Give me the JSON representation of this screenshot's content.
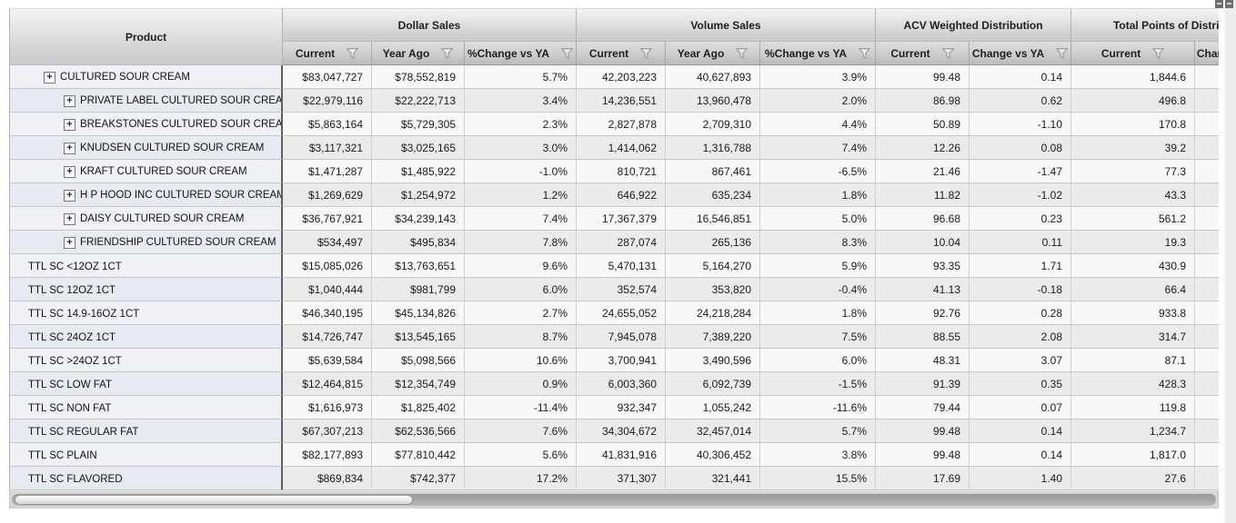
{
  "grid": {
    "product_header": "Product",
    "groups": [
      {
        "label": "Dollar Sales",
        "columns": [
          "Current",
          "Year Ago",
          "%Change vs YA"
        ]
      },
      {
        "label": "Volume Sales",
        "columns": [
          "Current",
          "Year Ago",
          "%Change vs YA"
        ]
      },
      {
        "label": "ACV Weighted Distribution",
        "columns": [
          "Current",
          "Change vs YA"
        ]
      },
      {
        "label": "Total Points of Distribution",
        "columns": [
          "Current",
          "Change vs YA"
        ]
      }
    ],
    "icons": {
      "filter": "funnel-icon",
      "expand": "plus-box-icon",
      "corner": "resize-handle-icon"
    },
    "rows": [
      {
        "product": "CULTURED SOUR CREAM",
        "level": 0,
        "expandable": true,
        "values": [
          "$83,047,727",
          "$78,552,819",
          "5.7%",
          "42,203,223",
          "40,627,893",
          "3.9%",
          "99.48",
          "0.14",
          "1,844.6",
          ""
        ]
      },
      {
        "product": "PRIVATE LABEL CULTURED SOUR CREAM",
        "level": 1,
        "expandable": true,
        "values": [
          "$22,979,116",
          "$22,222,713",
          "3.4%",
          "14,236,551",
          "13,960,478",
          "2.0%",
          "86.98",
          "0.62",
          "496.8",
          ""
        ]
      },
      {
        "product": "BREAKSTONES CULTURED SOUR CREAM",
        "level": 1,
        "expandable": true,
        "values": [
          "$5,863,164",
          "$5,729,305",
          "2.3%",
          "2,827,878",
          "2,709,310",
          "4.4%",
          "50.89",
          "-1.10",
          "170.8",
          ""
        ]
      },
      {
        "product": "KNUDSEN CULTURED SOUR CREAM",
        "level": 1,
        "expandable": true,
        "values": [
          "$3,117,321",
          "$3,025,165",
          "3.0%",
          "1,414,062",
          "1,316,788",
          "7.4%",
          "12.26",
          "0.08",
          "39.2",
          ""
        ]
      },
      {
        "product": "KRAFT CULTURED SOUR CREAM",
        "level": 1,
        "expandable": true,
        "values": [
          "$1,471,287",
          "$1,485,922",
          "-1.0%",
          "810,721",
          "867,461",
          "-6.5%",
          "21.46",
          "-1.47",
          "77.3",
          ""
        ]
      },
      {
        "product": "H P HOOD INC CULTURED SOUR CREAM",
        "level": 1,
        "expandable": true,
        "values": [
          "$1,269,629",
          "$1,254,972",
          "1.2%",
          "646,922",
          "635,234",
          "1.8%",
          "11.82",
          "-1.02",
          "43.3",
          ""
        ]
      },
      {
        "product": "DAISY CULTURED SOUR CREAM",
        "level": 1,
        "expandable": true,
        "values": [
          "$36,767,921",
          "$34,239,143",
          "7.4%",
          "17,367,379",
          "16,546,851",
          "5.0%",
          "96.68",
          "0.23",
          "561.2",
          ""
        ]
      },
      {
        "product": "FRIENDSHIP CULTURED SOUR CREAM",
        "level": 1,
        "expandable": true,
        "values": [
          "$534,497",
          "$495,834",
          "7.8%",
          "287,074",
          "265,136",
          "8.3%",
          "10.04",
          "0.11",
          "19.3",
          ""
        ]
      },
      {
        "product": "TTL SC <12OZ 1CT",
        "level": 0,
        "expandable": false,
        "values": [
          "$15,085,026",
          "$13,763,651",
          "9.6%",
          "5,470,131",
          "5,164,270",
          "5.9%",
          "93.35",
          "1.71",
          "430.9",
          ""
        ]
      },
      {
        "product": "TTL SC 12OZ 1CT",
        "level": 0,
        "expandable": false,
        "values": [
          "$1,040,444",
          "$981,799",
          "6.0%",
          "352,574",
          "353,820",
          "-0.4%",
          "41.13",
          "-0.18",
          "66.4",
          ""
        ]
      },
      {
        "product": "TTL SC 14.9-16OZ 1CT",
        "level": 0,
        "expandable": false,
        "values": [
          "$46,340,195",
          "$45,134,826",
          "2.7%",
          "24,655,052",
          "24,218,284",
          "1.8%",
          "92.76",
          "0.28",
          "933.8",
          ""
        ]
      },
      {
        "product": "TTL SC 24OZ 1CT",
        "level": 0,
        "expandable": false,
        "values": [
          "$14,726,747",
          "$13,545,165",
          "8.7%",
          "7,945,078",
          "7,389,220",
          "7.5%",
          "88.55",
          "2.08",
          "314.7",
          ""
        ]
      },
      {
        "product": "TTL SC >24OZ 1CT",
        "level": 0,
        "expandable": false,
        "values": [
          "$5,639,584",
          "$5,098,566",
          "10.6%",
          "3,700,941",
          "3,490,596",
          "6.0%",
          "48.31",
          "3.07",
          "87.1",
          ""
        ]
      },
      {
        "product": "TTL SC LOW FAT",
        "level": 0,
        "expandable": false,
        "values": [
          "$12,464,815",
          "$12,354,749",
          "0.9%",
          "6,003,360",
          "6,092,739",
          "-1.5%",
          "91.39",
          "0.35",
          "428.3",
          ""
        ]
      },
      {
        "product": "TTL SC NON FAT",
        "level": 0,
        "expandable": false,
        "values": [
          "$1,616,973",
          "$1,825,402",
          "-11.4%",
          "932,347",
          "1,055,242",
          "-11.6%",
          "79.44",
          "0.07",
          "119.8",
          ""
        ]
      },
      {
        "product": "TTL SC REGULAR FAT",
        "level": 0,
        "expandable": false,
        "values": [
          "$67,307,213",
          "$62,536,566",
          "7.6%",
          "34,304,672",
          "32,457,014",
          "5.7%",
          "99.48",
          "0.14",
          "1,234.7",
          ""
        ]
      },
      {
        "product": "TTL SC PLAIN",
        "level": 0,
        "expandable": false,
        "values": [
          "$82,177,893",
          "$77,810,442",
          "5.6%",
          "41,831,916",
          "40,306,452",
          "3.8%",
          "99.48",
          "0.14",
          "1,817.0",
          ""
        ]
      },
      {
        "product": "TTL SC FLAVORED",
        "level": 0,
        "expandable": false,
        "values": [
          "$869,834",
          "$742,377",
          "17.2%",
          "371,307",
          "321,441",
          "15.5%",
          "17.69",
          "1.40",
          "27.6",
          ""
        ]
      }
    ]
  }
}
